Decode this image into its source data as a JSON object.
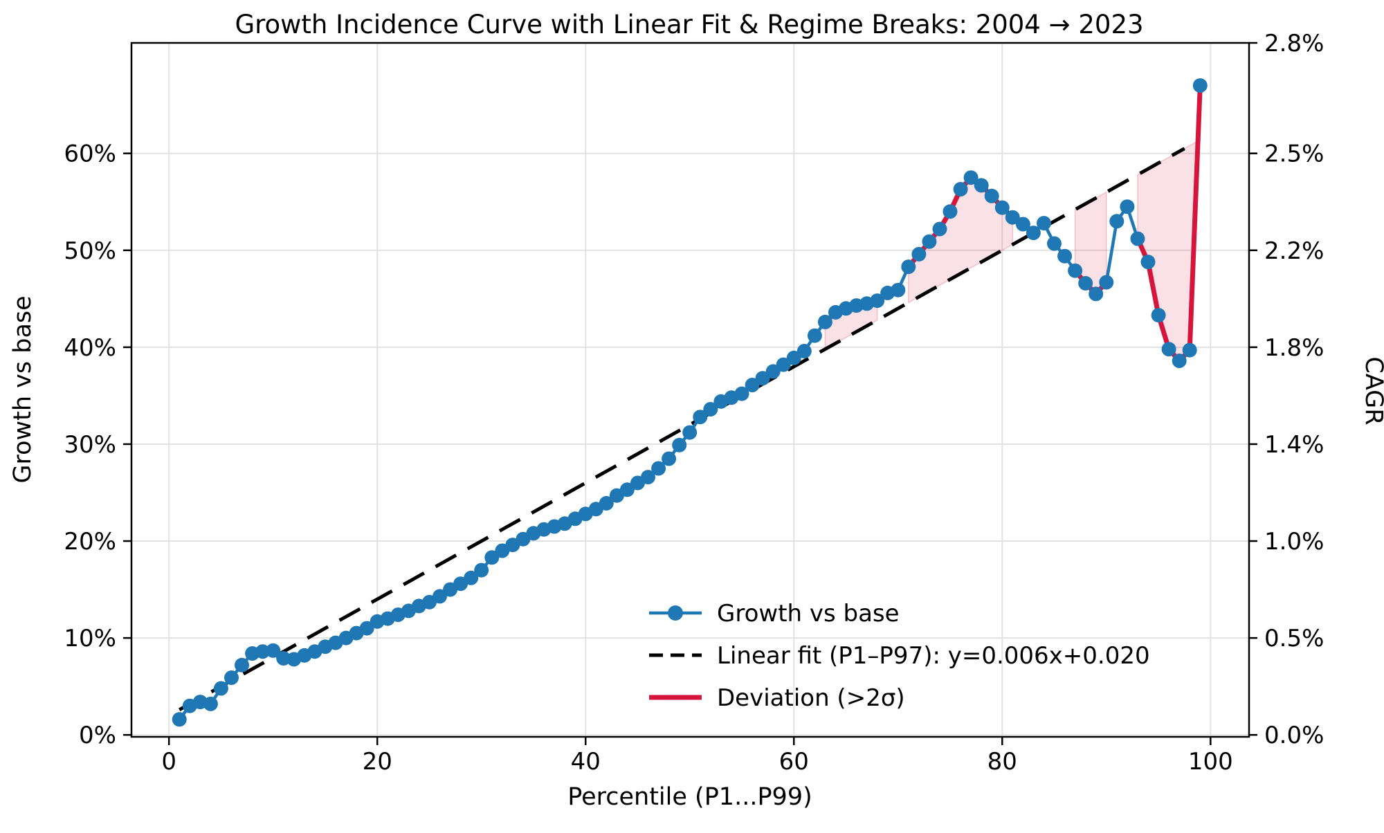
{
  "chart_data": {
    "type": "line",
    "title": "Growth Incidence Curve with Linear Fit & Regime Breaks: 2004 → 2023",
    "xlabel": "Percentile (P1...P99)",
    "ylabel": "Growth vs base",
    "ylabel_right": "CAGR",
    "grid": true,
    "legend_position": "lower right",
    "xlim": [
      -3.6,
      103.7
    ],
    "ylim_percent": [
      -0.2,
      71.4
    ],
    "x_ticks": [
      0,
      20,
      40,
      60,
      80,
      100
    ],
    "y_ticks_left": [
      {
        "value": 0,
        "label": "0%"
      },
      {
        "value": 10,
        "label": "10%"
      },
      {
        "value": 20,
        "label": "20%"
      },
      {
        "value": 30,
        "label": "30%"
      },
      {
        "value": 40,
        "label": "40%"
      },
      {
        "value": 50,
        "label": "50%"
      },
      {
        "value": 60,
        "label": "60%"
      }
    ],
    "y_ticks_right": [
      {
        "value": 0,
        "label": "0.0%"
      },
      {
        "value": 10,
        "label": "0.5%"
      },
      {
        "value": 20,
        "label": "1.0%"
      },
      {
        "value": 30,
        "label": "1.4%"
      },
      {
        "value": 40,
        "label": "1.8%"
      },
      {
        "value": 50,
        "label": "2.2%"
      },
      {
        "value": 60,
        "label": "2.5%"
      },
      {
        "value": 71.4,
        "label": "2.8%"
      }
    ],
    "x": [
      1,
      2,
      3,
      4,
      5,
      6,
      7,
      8,
      9,
      10,
      11,
      12,
      13,
      14,
      15,
      16,
      17,
      18,
      19,
      20,
      21,
      22,
      23,
      24,
      25,
      26,
      27,
      28,
      29,
      30,
      31,
      32,
      33,
      34,
      35,
      36,
      37,
      38,
      39,
      40,
      41,
      42,
      43,
      44,
      45,
      46,
      47,
      48,
      49,
      50,
      51,
      52,
      53,
      54,
      55,
      56,
      57,
      58,
      59,
      60,
      61,
      62,
      63,
      64,
      65,
      66,
      67,
      68,
      69,
      70,
      71,
      72,
      73,
      74,
      75,
      76,
      77,
      78,
      79,
      80,
      81,
      82,
      83,
      84,
      85,
      86,
      87,
      88,
      89,
      90,
      91,
      92,
      93,
      94,
      95,
      96,
      97,
      98,
      99
    ],
    "series": [
      {
        "name": "Growth vs base",
        "type": "line+markers",
        "color": "#1f77b4",
        "values": [
          1.6,
          3.0,
          3.4,
          3.2,
          4.8,
          5.9,
          7.2,
          8.4,
          8.6,
          8.7,
          7.9,
          7.8,
          8.2,
          8.6,
          9.1,
          9.5,
          10.0,
          10.5,
          11.0,
          11.7,
          12.0,
          12.4,
          12.8,
          13.3,
          13.7,
          14.3,
          15.0,
          15.6,
          16.2,
          17.0,
          18.3,
          19.0,
          19.6,
          20.2,
          20.8,
          21.2,
          21.5,
          21.8,
          22.3,
          22.8,
          23.3,
          23.9,
          24.7,
          25.3,
          26.0,
          26.6,
          27.5,
          28.5,
          29.9,
          31.2,
          32.8,
          33.6,
          34.4,
          34.8,
          35.2,
          36.1,
          36.8,
          37.5,
          38.2,
          38.9,
          39.6,
          41.2,
          42.6,
          43.6,
          44.0,
          44.3,
          44.5,
          44.8,
          45.6,
          45.9,
          48.3,
          49.6,
          50.9,
          52.2,
          54.0,
          56.3,
          57.5,
          56.7,
          55.6,
          54.4,
          53.4,
          52.7,
          51.8,
          52.8,
          50.7,
          49.4,
          47.9,
          46.6,
          45.5,
          46.7,
          53.0,
          54.5,
          51.2,
          48.8,
          43.3,
          39.8,
          38.6,
          39.7,
          67.0
        ]
      },
      {
        "name": "Linear fit (P1–P97)",
        "type": "dashed-line",
        "color": "#000000",
        "fit": {
          "slope": 0.006,
          "intercept": 0.02,
          "equation": "y=0.006x+0.020",
          "x_start": 1,
          "x_end": 97.5
        }
      },
      {
        "name": "Deviation (>2σ)",
        "type": "line",
        "color": "#d6153d",
        "segments_percentiles": [
          [
            63,
            68
          ],
          [
            71,
            81
          ],
          [
            87,
            90
          ],
          [
            93,
            99
          ]
        ]
      }
    ],
    "deviation_fill": {
      "color": "#dc143c",
      "opacity": 0.13,
      "ranges": [
        [
          63,
          68
        ],
        [
          71,
          81
        ],
        [
          87,
          90
        ],
        [
          93,
          98.8
        ]
      ]
    }
  },
  "legend": {
    "items": [
      {
        "label": "Growth vs base",
        "type": "line-marker",
        "color": "#1f77b4"
      },
      {
        "label": "Linear fit (P1–P97): y=0.006x+0.020",
        "type": "dashed-line",
        "color": "#000000"
      },
      {
        "label": "Deviation (>2σ)",
        "type": "line",
        "color": "#d6153d"
      }
    ]
  },
  "style_colors": {
    "curve_blue": "#1f77b4",
    "deviation_red": "#d6153d",
    "fill_pink": "#dc143c",
    "grid_gray": "#e2e2e2",
    "spine_black": "#000000",
    "background": "#ffffff"
  }
}
